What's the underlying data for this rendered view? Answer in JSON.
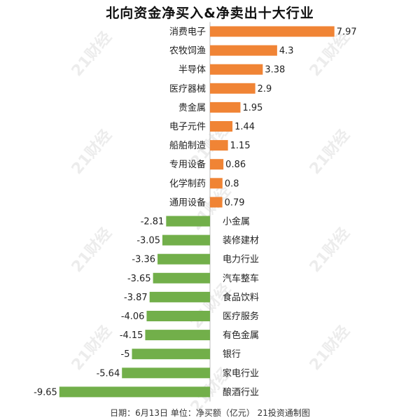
{
  "title": "北向资金净买入&净卖出十大行业",
  "footer": "日期：6月13日 单位：净买额（亿元） 21投资通制图",
  "watermark": "21财经",
  "colors": {
    "positive": "#F08435",
    "negative": "#72AF4A",
    "axis": "#bbbbbb"
  },
  "chart_data": {
    "type": "bar",
    "orientation": "horizontal",
    "title": "北向资金净买入&净卖出十大行业",
    "categories": [
      "消费电子",
      "农牧饲渔",
      "半导体",
      "医疗器械",
      "贵金属",
      "电子元件",
      "船舶制造",
      "专用设备",
      "化学制药",
      "通用设备",
      "小金属",
      "装修建材",
      "电力行业",
      "汽车整车",
      "食品饮料",
      "医疗服务",
      "有色金属",
      "银行",
      "家电行业",
      "酿酒行业"
    ],
    "values": [
      7.97,
      4.3,
      3.38,
      2.9,
      1.95,
      1.44,
      1.15,
      0.86,
      0.8,
      0.79,
      -2.81,
      -3.05,
      -3.36,
      -3.65,
      -3.87,
      -4.06,
      -4.15,
      -5,
      -5.64,
      -9.65
    ],
    "value_labels": [
      "7.97",
      "4.3",
      "3.38",
      "2.9",
      "1.95",
      "1.44",
      "1.15",
      "0.86",
      "0.8",
      "0.79",
      "-2.81",
      "-3.05",
      "-3.36",
      "-3.65",
      "-3.87",
      "-4.06",
      "-4.15",
      "-5",
      "-5.64",
      "-9.65"
    ],
    "unit": "亿元",
    "grid": false,
    "legend": "none"
  }
}
